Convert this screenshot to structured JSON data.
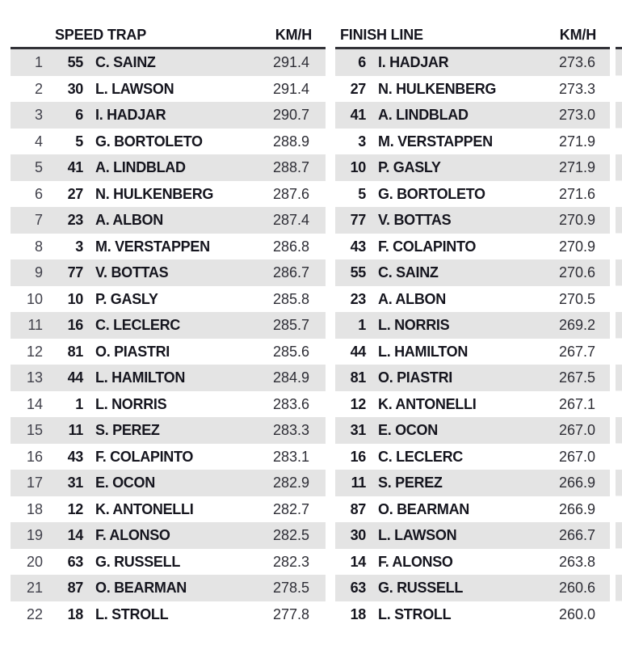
{
  "colors": {
    "bg": "#ffffff",
    "stripe": "#e4e4e4",
    "rule": "#323238",
    "ink": "#15151e",
    "muted": "#41414b",
    "speed": "#2e2e36"
  },
  "chart_data": [
    {
      "type": "table",
      "title": "SPEED TRAP",
      "unit": "KM/H",
      "columns": [
        "position",
        "car_number",
        "driver",
        "speed_kmh"
      ],
      "rows": [
        [
          "1",
          "55",
          "C. SAINZ",
          "291.4"
        ],
        [
          "2",
          "30",
          "L. LAWSON",
          "291.4"
        ],
        [
          "3",
          "6",
          "I. HADJAR",
          "290.7"
        ],
        [
          "4",
          "5",
          "G. BORTOLETO",
          "288.9"
        ],
        [
          "5",
          "41",
          "A. LINDBLAD",
          "288.7"
        ],
        [
          "6",
          "27",
          "N. HULKENBERG",
          "287.6"
        ],
        [
          "7",
          "23",
          "A. ALBON",
          "287.4"
        ],
        [
          "8",
          "3",
          "M. VERSTAPPEN",
          "286.8"
        ],
        [
          "9",
          "77",
          "V. BOTTAS",
          "286.7"
        ],
        [
          "10",
          "10",
          "P. GASLY",
          "285.8"
        ],
        [
          "11",
          "16",
          "C. LECLERC",
          "285.7"
        ],
        [
          "12",
          "81",
          "O. PIASTRI",
          "285.6"
        ],
        [
          "13",
          "44",
          "L. HAMILTON",
          "284.9"
        ],
        [
          "14",
          "1",
          "L. NORRIS",
          "283.6"
        ],
        [
          "15",
          "11",
          "S. PEREZ",
          "283.3"
        ],
        [
          "16",
          "43",
          "F. COLAPINTO",
          "283.1"
        ],
        [
          "17",
          "31",
          "E. OCON",
          "282.9"
        ],
        [
          "18",
          "12",
          "K. ANTONELLI",
          "282.7"
        ],
        [
          "19",
          "14",
          "F. ALONSO",
          "282.5"
        ],
        [
          "20",
          "63",
          "G. RUSSELL",
          "282.3"
        ],
        [
          "21",
          "87",
          "O. BEARMAN",
          "278.5"
        ],
        [
          "22",
          "18",
          "L. STROLL",
          "277.8"
        ]
      ]
    },
    {
      "type": "table",
      "title": "FINISH LINE",
      "unit": "KM/H",
      "columns": [
        "car_number",
        "driver",
        "speed_kmh"
      ],
      "rows": [
        [
          "6",
          "I. HADJAR",
          "273.6"
        ],
        [
          "27",
          "N. HULKENBERG",
          "273.3"
        ],
        [
          "41",
          "A. LINDBLAD",
          "273.0"
        ],
        [
          "3",
          "M. VERSTAPPEN",
          "271.9"
        ],
        [
          "10",
          "P. GASLY",
          "271.9"
        ],
        [
          "5",
          "G. BORTOLETO",
          "271.6"
        ],
        [
          "77",
          "V. BOTTAS",
          "270.9"
        ],
        [
          "43",
          "F. COLAPINTO",
          "270.9"
        ],
        [
          "55",
          "C. SAINZ",
          "270.6"
        ],
        [
          "23",
          "A. ALBON",
          "270.5"
        ],
        [
          "1",
          "L. NORRIS",
          "269.2"
        ],
        [
          "44",
          "L. HAMILTON",
          "267.7"
        ],
        [
          "81",
          "O. PIASTRI",
          "267.5"
        ],
        [
          "12",
          "K. ANTONELLI",
          "267.1"
        ],
        [
          "31",
          "E. OCON",
          "267.0"
        ],
        [
          "16",
          "C. LECLERC",
          "267.0"
        ],
        [
          "11",
          "S. PEREZ",
          "266.9"
        ],
        [
          "87",
          "O. BEARMAN",
          "266.9"
        ],
        [
          "30",
          "L. LAWSON",
          "266.7"
        ],
        [
          "14",
          "F. ALONSO",
          "263.8"
        ],
        [
          "63",
          "G. RUSSELL",
          "260.6"
        ],
        [
          "18",
          "L. STROLL",
          "260.0"
        ]
      ]
    }
  ]
}
